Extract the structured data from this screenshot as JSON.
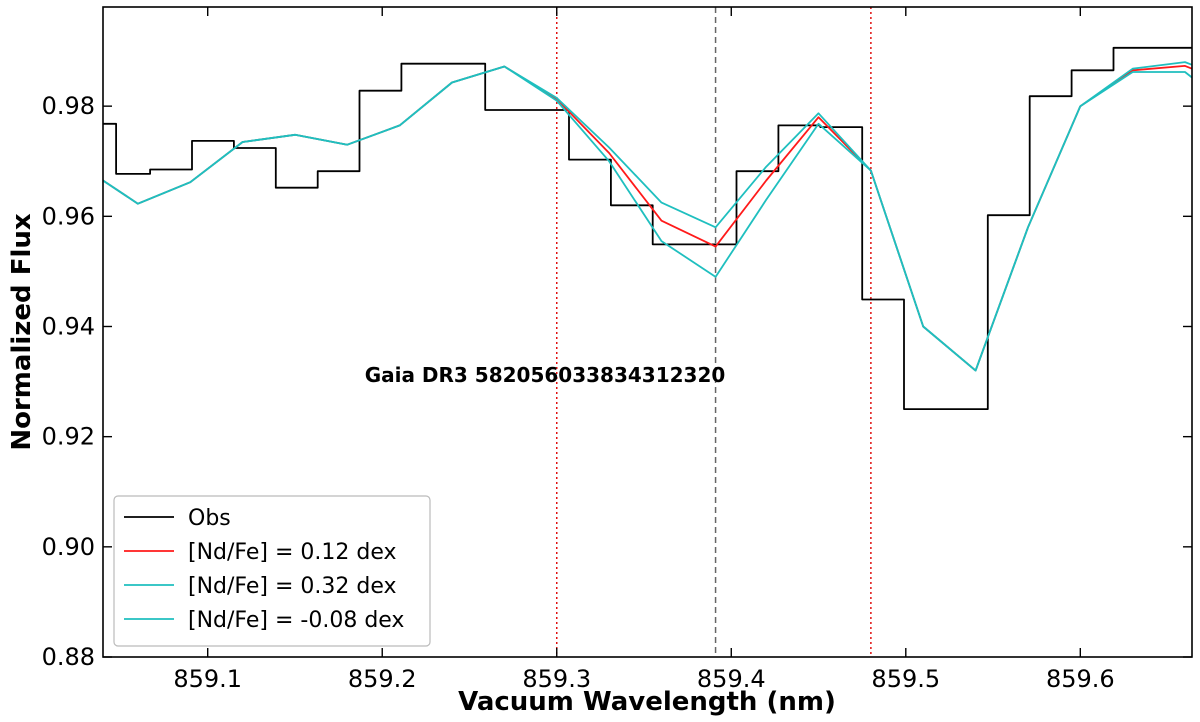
{
  "chart_data": {
    "type": "line",
    "xlabel": "Vacuum Wavelength (nm)",
    "ylabel": "Normalized Flux",
    "xlim": [
      859.04,
      859.664
    ],
    "ylim": [
      0.88,
      0.998
    ],
    "xticks": [
      859.1,
      859.2,
      859.3,
      859.4,
      859.5,
      859.6
    ],
    "xtick_labels": [
      "859.1",
      "859.2",
      "859.3",
      "859.4",
      "859.5",
      "859.6"
    ],
    "yticks": [
      0.88,
      0.9,
      0.92,
      0.94,
      0.96,
      0.98
    ],
    "ytick_labels": [
      "0.88",
      "0.90",
      "0.92",
      "0.94",
      "0.96",
      "0.98"
    ],
    "grid": false,
    "legend_position": "lower-left",
    "annotation": "Gaia DR3 5820560338343123​20",
    "vlines": [
      {
        "x": 859.3,
        "color": "#e01010",
        "style": "dotted"
      },
      {
        "x": 859.391,
        "color": "#666666",
        "style": "dashed"
      },
      {
        "x": 859.48,
        "color": "#e01010",
        "style": "dotted"
      }
    ],
    "series": [
      {
        "name": "Obs",
        "color": "#000000",
        "drawstyle": "steps-mid",
        "x": [
          859.04,
          859.055,
          859.079,
          859.103,
          859.127,
          859.151,
          859.175,
          859.199,
          859.223,
          859.247,
          859.271,
          859.295,
          859.319,
          859.343,
          859.367,
          859.391,
          859.415,
          859.439,
          859.463,
          859.487,
          859.511,
          859.535,
          859.559,
          859.583,
          859.607,
          859.631,
          859.655,
          859.664
        ],
        "y": [
          0.9768,
          0.9677,
          0.9685,
          0.9737,
          0.9724,
          0.9652,
          0.9682,
          0.9828,
          0.9877,
          0.9877,
          0.9793,
          0.9793,
          0.9703,
          0.962,
          0.9549,
          0.9549,
          0.9682,
          0.9765,
          0.9762,
          0.9449,
          0.925,
          0.925,
          0.9602,
          0.9818,
          0.9865,
          0.9906,
          0.9906,
          0.9906
        ]
      },
      {
        "name": "[Nd/Fe] = 0.12 dex",
        "color": "#ff1a1a",
        "x": [
          859.04,
          859.06,
          859.09,
          859.12,
          859.15,
          859.18,
          859.21,
          859.24,
          859.27,
          859.3,
          859.33,
          859.36,
          859.391,
          859.42,
          859.45,
          859.48,
          859.51,
          859.54,
          859.57,
          859.6,
          859.63,
          859.66,
          859.664
        ],
        "y": [
          0.9665,
          0.9623,
          0.9662,
          0.9735,
          0.9748,
          0.973,
          0.9765,
          0.9843,
          0.9872,
          0.9813,
          0.9715,
          0.9592,
          0.9545,
          0.9665,
          0.978,
          0.9683,
          0.94,
          0.932,
          0.958,
          0.98,
          0.9865,
          0.9873,
          0.9868
        ]
      },
      {
        "name": "[Nd/Fe] = 0.32 dex",
        "color": "#1fbfbf",
        "x": [
          859.04,
          859.06,
          859.09,
          859.12,
          859.15,
          859.18,
          859.21,
          859.24,
          859.27,
          859.3,
          859.33,
          859.36,
          859.391,
          859.42,
          859.45,
          859.48,
          859.51,
          859.54,
          859.57,
          859.6,
          859.63,
          859.66,
          859.664
        ],
        "y": [
          0.9665,
          0.9623,
          0.9662,
          0.9735,
          0.9748,
          0.973,
          0.9765,
          0.9843,
          0.9872,
          0.981,
          0.97,
          0.9555,
          0.949,
          0.963,
          0.9768,
          0.9683,
          0.94,
          0.932,
          0.958,
          0.98,
          0.9862,
          0.9862,
          0.9852
        ]
      },
      {
        "name": "[Nd/Fe] = -0.08 dex",
        "color": "#1fbfbf",
        "x": [
          859.04,
          859.06,
          859.09,
          859.12,
          859.15,
          859.18,
          859.21,
          859.24,
          859.27,
          859.3,
          859.33,
          859.36,
          859.391,
          859.42,
          859.45,
          859.48,
          859.51,
          859.54,
          859.57,
          859.6,
          859.63,
          859.66,
          859.664
        ],
        "y": [
          0.9665,
          0.9623,
          0.9662,
          0.9735,
          0.9748,
          0.973,
          0.9765,
          0.9843,
          0.9872,
          0.9815,
          0.9725,
          0.9625,
          0.958,
          0.969,
          0.9787,
          0.9683,
          0.94,
          0.932,
          0.958,
          0.98,
          0.9868,
          0.988,
          0.9875
        ]
      }
    ]
  }
}
